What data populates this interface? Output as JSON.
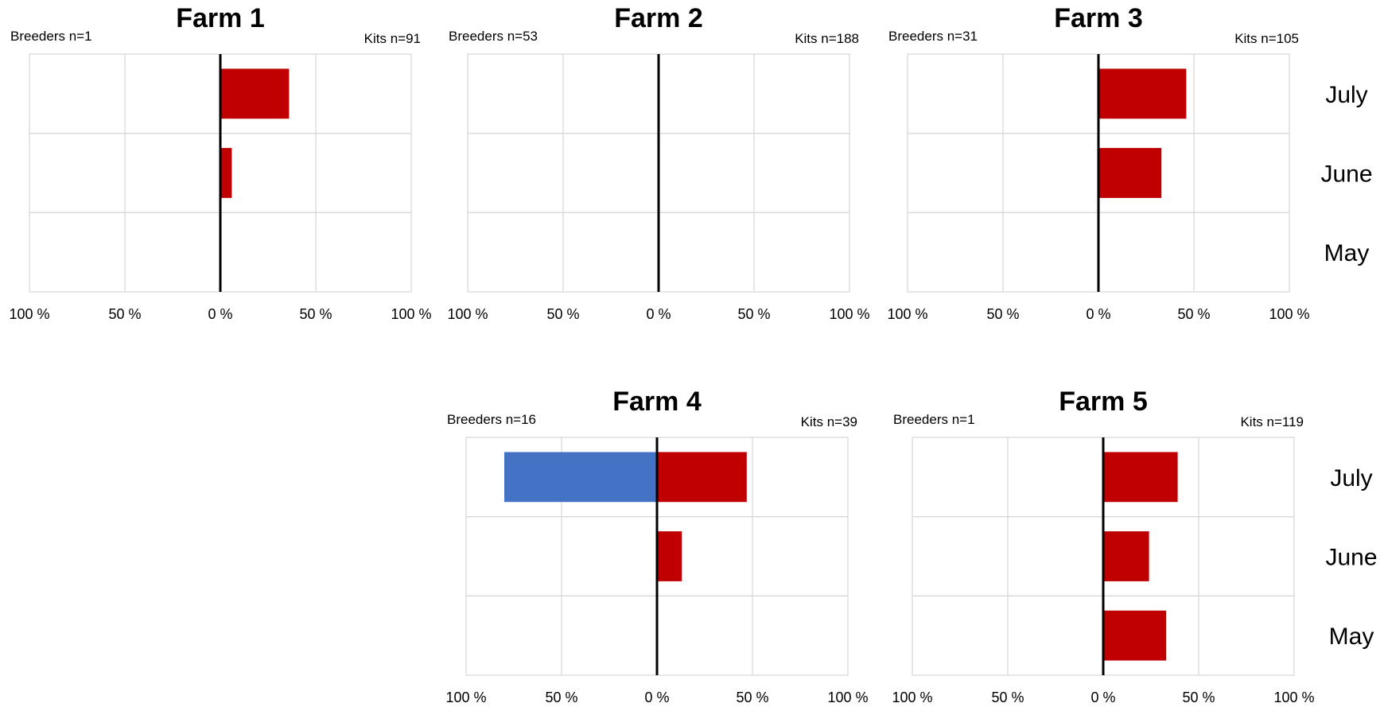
{
  "colors": {
    "breeders": "#4472C4",
    "kits": "#C00000"
  },
  "chart_data": [
    {
      "type": "bar",
      "title": "Farm 1",
      "breeders_label": "Breeders n=1",
      "kits_label": "Kits n=91",
      "categories": [
        "July",
        "June",
        "May"
      ],
      "series": [
        {
          "values": [
            0,
            0,
            0
          ]
        },
        {
          "values": [
            36,
            6,
            0
          ]
        }
      ],
      "xlim": [
        -100,
        100
      ],
      "x_ticks": [
        "100 %",
        "50 %",
        "0 %",
        "50 %",
        "100 %"
      ],
      "show_category_labels": false
    },
    {
      "type": "bar",
      "title": "Farm 2",
      "breeders_label": "Breeders n=53",
      "kits_label": "Kits n=188",
      "categories": [
        "July",
        "June",
        "May"
      ],
      "series": [
        {
          "values": [
            0,
            0,
            0
          ]
        },
        {
          "values": [
            0,
            0,
            0
          ]
        }
      ],
      "xlim": [
        -100,
        100
      ],
      "x_ticks": [
        "100 %",
        "50 %",
        "0 %",
        "50 %",
        "100 %"
      ],
      "show_category_labels": false
    },
    {
      "type": "bar",
      "title": "Farm 3",
      "breeders_label": "Breeders n=31",
      "kits_label": "Kits n=105",
      "categories": [
        "July",
        "June",
        "May"
      ],
      "series": [
        {
          "values": [
            0,
            0,
            0
          ]
        },
        {
          "values": [
            46,
            33,
            0
          ]
        }
      ],
      "xlim": [
        -100,
        100
      ],
      "x_ticks": [
        "100 %",
        "50 %",
        "0 %",
        "50 %",
        "100 %"
      ],
      "show_category_labels": true
    },
    {
      "type": "bar",
      "title": "Farm 4",
      "breeders_label": "Breeders n=16",
      "kits_label": "Kits n=39",
      "categories": [
        "July",
        "June",
        "May"
      ],
      "series": [
        {
          "values": [
            80,
            0,
            0
          ]
        },
        {
          "values": [
            47,
            13,
            0
          ]
        }
      ],
      "xlim": [
        -100,
        100
      ],
      "x_ticks": [
        "100 %",
        "50 %",
        "0 %",
        "50 %",
        "100 %"
      ],
      "show_category_labels": false
    },
    {
      "type": "bar",
      "title": "Farm 5",
      "breeders_label": "Breeders n=1",
      "kits_label": "Kits n=119",
      "categories": [
        "July",
        "June",
        "May"
      ],
      "series": [
        {
          "values": [
            0,
            0,
            0
          ]
        },
        {
          "values": [
            39,
            24,
            33
          ]
        }
      ],
      "xlim": [
        -100,
        100
      ],
      "x_ticks": [
        "100 %",
        "50 %",
        "0 %",
        "50 %",
        "100 %"
      ],
      "show_category_labels": true
    }
  ]
}
